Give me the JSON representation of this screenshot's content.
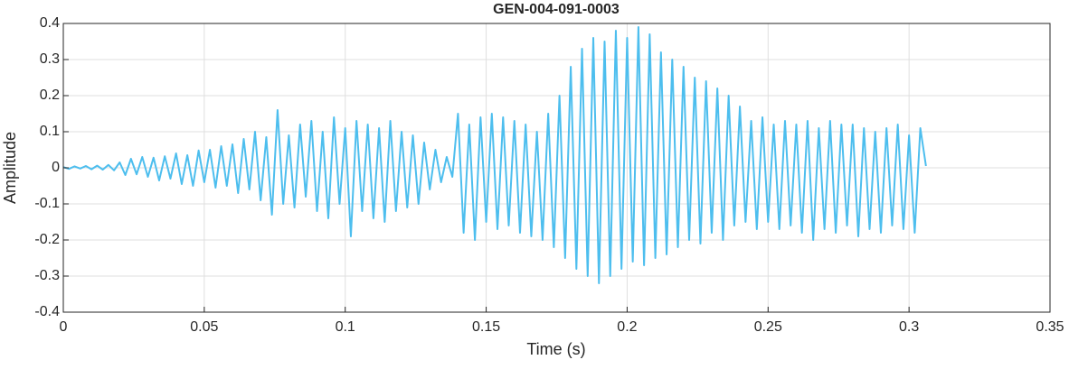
{
  "chart_data": {
    "type": "line",
    "title": "GEN-004-091-0003",
    "xlabel": "Time (s)",
    "ylabel": "Amplitude",
    "xlim": [
      0,
      0.35
    ],
    "xticks": [
      0,
      0.05,
      0.1,
      0.15,
      0.2,
      0.25,
      0.3,
      0.35
    ],
    "ylim": [
      -0.4,
      0.4
    ],
    "yticks": [
      -0.4,
      -0.3,
      -0.2,
      -0.1,
      0,
      0.1,
      0.2,
      0.3,
      0.4
    ],
    "grid": true,
    "x": [
      0,
      0.002,
      0.004,
      0.006,
      0.008,
      0.01,
      0.012,
      0.014,
      0.016,
      0.018,
      0.02,
      0.022,
      0.024,
      0.026,
      0.028,
      0.03,
      0.032,
      0.034,
      0.036,
      0.038,
      0.04,
      0.042,
      0.044,
      0.046,
      0.048,
      0.05,
      0.052,
      0.054,
      0.056,
      0.058,
      0.06,
      0.062,
      0.064,
      0.066,
      0.068,
      0.07,
      0.072,
      0.074,
      0.076,
      0.078,
      0.08,
      0.082,
      0.084,
      0.086,
      0.088,
      0.09,
      0.092,
      0.094,
      0.096,
      0.098,
      0.1,
      0.102,
      0.104,
      0.106,
      0.108,
      0.11,
      0.112,
      0.114,
      0.116,
      0.118,
      0.12,
      0.122,
      0.124,
      0.126,
      0.128,
      0.13,
      0.132,
      0.134,
      0.136,
      0.138,
      0.14,
      0.142,
      0.144,
      0.146,
      0.148,
      0.15,
      0.152,
      0.154,
      0.156,
      0.158,
      0.16,
      0.162,
      0.164,
      0.166,
      0.168,
      0.17,
      0.172,
      0.174,
      0.176,
      0.178,
      0.18,
      0.182,
      0.184,
      0.186,
      0.188,
      0.19,
      0.192,
      0.194,
      0.196,
      0.198,
      0.2,
      0.202,
      0.204,
      0.206,
      0.208,
      0.21,
      0.212,
      0.214,
      0.216,
      0.218,
      0.22,
      0.222,
      0.224,
      0.226,
      0.228,
      0.23,
      0.232,
      0.234,
      0.236,
      0.238,
      0.24,
      0.242,
      0.244,
      0.246,
      0.248,
      0.25,
      0.252,
      0.254,
      0.256,
      0.258,
      0.26,
      0.262,
      0.264,
      0.266,
      0.268,
      0.27,
      0.272,
      0.274,
      0.276,
      0.278,
      0.28,
      0.282,
      0.284,
      0.286,
      0.288,
      0.29,
      0.292,
      0.294,
      0.296,
      0.298,
      0.3,
      0.302,
      0.304,
      0.306
    ],
    "series": [
      {
        "color": "#4dbeee",
        "values": [
          0.002,
          -0.003,
          0.004,
          -0.002,
          0.005,
          -0.004,
          0.006,
          -0.005,
          0.008,
          -0.007,
          0.015,
          -0.02,
          0.025,
          -0.018,
          0.03,
          -0.025,
          0.028,
          -0.035,
          0.032,
          -0.03,
          0.04,
          -0.045,
          0.035,
          -0.05,
          0.048,
          -0.04,
          0.05,
          -0.055,
          0.06,
          -0.05,
          0.065,
          -0.07,
          0.08,
          -0.06,
          0.1,
          -0.09,
          0.085,
          -0.13,
          0.16,
          -0.1,
          0.09,
          -0.11,
          0.12,
          -0.08,
          0.13,
          -0.12,
          0.1,
          -0.14,
          0.14,
          -0.1,
          0.11,
          -0.19,
          0.13,
          -0.12,
          0.12,
          -0.14,
          0.11,
          -0.15,
          0.13,
          -0.12,
          0.1,
          -0.11,
          0.09,
          -0.1,
          0.07,
          -0.06,
          0.05,
          -0.04,
          0.03,
          -0.025,
          0.15,
          -0.18,
          0.12,
          -0.2,
          0.14,
          -0.15,
          0.15,
          -0.17,
          0.14,
          -0.16,
          0.13,
          -0.18,
          0.12,
          -0.19,
          0.1,
          -0.2,
          0.15,
          -0.22,
          0.2,
          -0.25,
          0.28,
          -0.28,
          0.33,
          -0.3,
          0.36,
          -0.32,
          0.35,
          -0.3,
          0.38,
          -0.28,
          0.36,
          -0.26,
          0.39,
          -0.27,
          0.37,
          -0.25,
          0.32,
          -0.24,
          0.3,
          -0.22,
          0.28,
          -0.2,
          0.25,
          -0.21,
          0.24,
          -0.18,
          0.22,
          -0.2,
          0.2,
          -0.16,
          0.17,
          -0.15,
          0.13,
          -0.17,
          0.14,
          -0.15,
          0.12,
          -0.17,
          0.13,
          -0.16,
          0.12,
          -0.18,
          0.13,
          -0.2,
          0.11,
          -0.17,
          0.13,
          -0.18,
          0.12,
          -0.16,
          0.12,
          -0.19,
          0.11,
          -0.17,
          0.1,
          -0.18,
          0.11,
          -0.16,
          0.12,
          -0.17,
          0.09,
          -0.18,
          0.11,
          0.005
        ]
      }
    ]
  }
}
